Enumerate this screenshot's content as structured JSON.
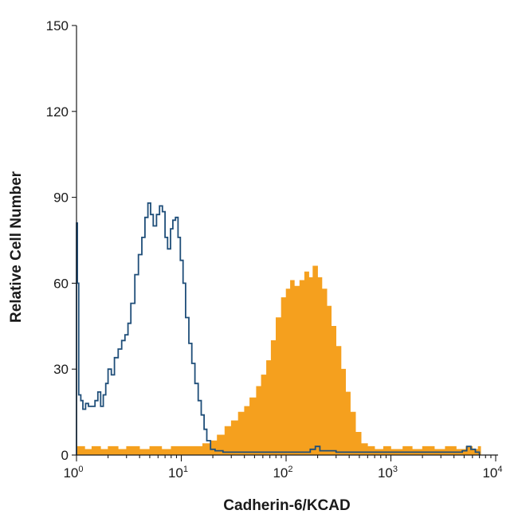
{
  "chart_data": {
    "type": "area",
    "title": "",
    "xlabel": "Cadherin-6/KCAD",
    "ylabel": "Relative Cell Number",
    "xscale": "log",
    "xlim": [
      1,
      10000
    ],
    "ylim": [
      0,
      150
    ],
    "x_ticks": [
      {
        "value": 1,
        "base": "10",
        "exp": "0"
      },
      {
        "value": 10,
        "base": "10",
        "exp": "1"
      },
      {
        "value": 100,
        "base": "10",
        "exp": "2"
      },
      {
        "value": 1000,
        "base": "10",
        "exp": "3"
      },
      {
        "value": 10000,
        "base": "10",
        "exp": "4"
      }
    ],
    "y_ticks": [
      {
        "value": 0,
        "label": "0"
      },
      {
        "value": 30,
        "label": "30"
      },
      {
        "value": 60,
        "label": "60"
      },
      {
        "value": 90,
        "label": "90"
      },
      {
        "value": 120,
        "label": "120"
      },
      {
        "value": 150,
        "label": "150"
      }
    ],
    "grid": false,
    "legend": "none",
    "series": [
      {
        "style": "step-outline",
        "color": "#1f4e79",
        "points": [
          [
            1.0,
            0
          ],
          [
            1.0,
            81
          ],
          [
            1.02,
            60
          ],
          [
            1.05,
            21
          ],
          [
            1.1,
            19
          ],
          [
            1.15,
            16
          ],
          [
            1.22,
            18
          ],
          [
            1.3,
            17
          ],
          [
            1.4,
            17
          ],
          [
            1.5,
            19
          ],
          [
            1.6,
            22
          ],
          [
            1.7,
            17
          ],
          [
            1.8,
            21
          ],
          [
            1.9,
            25
          ],
          [
            2.0,
            30
          ],
          [
            2.15,
            28
          ],
          [
            2.3,
            34
          ],
          [
            2.5,
            37
          ],
          [
            2.7,
            40
          ],
          [
            2.9,
            42
          ],
          [
            3.1,
            46
          ],
          [
            3.3,
            53
          ],
          [
            3.6,
            63
          ],
          [
            3.9,
            70
          ],
          [
            4.2,
            76
          ],
          [
            4.5,
            83
          ],
          [
            4.8,
            88
          ],
          [
            5.1,
            84
          ],
          [
            5.4,
            80
          ],
          [
            5.8,
            84
          ],
          [
            6.2,
            87
          ],
          [
            6.6,
            85
          ],
          [
            7.0,
            76
          ],
          [
            7.4,
            72
          ],
          [
            7.9,
            79
          ],
          [
            8.3,
            82
          ],
          [
            8.8,
            83
          ],
          [
            9.3,
            76
          ],
          [
            9.8,
            68
          ],
          [
            10.4,
            60
          ],
          [
            11.0,
            48
          ],
          [
            11.8,
            39
          ],
          [
            12.6,
            32
          ],
          [
            13.5,
            25
          ],
          [
            14.5,
            19
          ],
          [
            15.5,
            14
          ],
          [
            16.5,
            9
          ],
          [
            17.5,
            5
          ],
          [
            19.0,
            2
          ],
          [
            21.0,
            1.5
          ],
          [
            25.0,
            1
          ],
          [
            35.0,
            1
          ],
          [
            60.0,
            1
          ],
          [
            120.0,
            1
          ],
          [
            170.0,
            2
          ],
          [
            190.0,
            3
          ],
          [
            210.0,
            1.5
          ],
          [
            300.0,
            1
          ],
          [
            800.0,
            1
          ],
          [
            2500.0,
            1
          ],
          [
            4800.0,
            1.5
          ],
          [
            5300.0,
            3
          ],
          [
            5800.0,
            2
          ],
          [
            6400.0,
            1
          ],
          [
            7000.0,
            0
          ]
        ]
      },
      {
        "style": "filled",
        "color": "#f5a01e",
        "points": [
          [
            1.0,
            0
          ],
          [
            1.02,
            3
          ],
          [
            1.2,
            2
          ],
          [
            1.4,
            3
          ],
          [
            1.7,
            2
          ],
          [
            2.0,
            3
          ],
          [
            2.5,
            2
          ],
          [
            3.0,
            3
          ],
          [
            4.0,
            2
          ],
          [
            5.0,
            3
          ],
          [
            6.5,
            2
          ],
          [
            8.0,
            3
          ],
          [
            10.0,
            3
          ],
          [
            13.0,
            3
          ],
          [
            16.0,
            4
          ],
          [
            19.0,
            5
          ],
          [
            22.0,
            7
          ],
          [
            26.0,
            10
          ],
          [
            30.0,
            12
          ],
          [
            35.0,
            15
          ],
          [
            40.0,
            17
          ],
          [
            45.0,
            20
          ],
          [
            52.0,
            24
          ],
          [
            58.0,
            28
          ],
          [
            65.0,
            33
          ],
          [
            72.0,
            40
          ],
          [
            80.0,
            48
          ],
          [
            90.0,
            55
          ],
          [
            100.0,
            58
          ],
          [
            110.0,
            61
          ],
          [
            120.0,
            59
          ],
          [
            135.0,
            61
          ],
          [
            150.0,
            64
          ],
          [
            165.0,
            62
          ],
          [
            180.0,
            66
          ],
          [
            200.0,
            62
          ],
          [
            220.0,
            58
          ],
          [
            245.0,
            52
          ],
          [
            270.0,
            45
          ],
          [
            300.0,
            38
          ],
          [
            335.0,
            30
          ],
          [
            370.0,
            22
          ],
          [
            410.0,
            15
          ],
          [
            460.0,
            8
          ],
          [
            520.0,
            4
          ],
          [
            600.0,
            3
          ],
          [
            700.0,
            2
          ],
          [
            850.0,
            3
          ],
          [
            1000.0,
            2
          ],
          [
            1300.0,
            3
          ],
          [
            1600.0,
            2
          ],
          [
            2000.0,
            3
          ],
          [
            2600.0,
            2
          ],
          [
            3300.0,
            3
          ],
          [
            4200.0,
            2
          ],
          [
            5200.0,
            3
          ],
          [
            6000.0,
            2
          ],
          [
            6800.0,
            3
          ],
          [
            7200.0,
            0
          ]
        ]
      }
    ]
  }
}
